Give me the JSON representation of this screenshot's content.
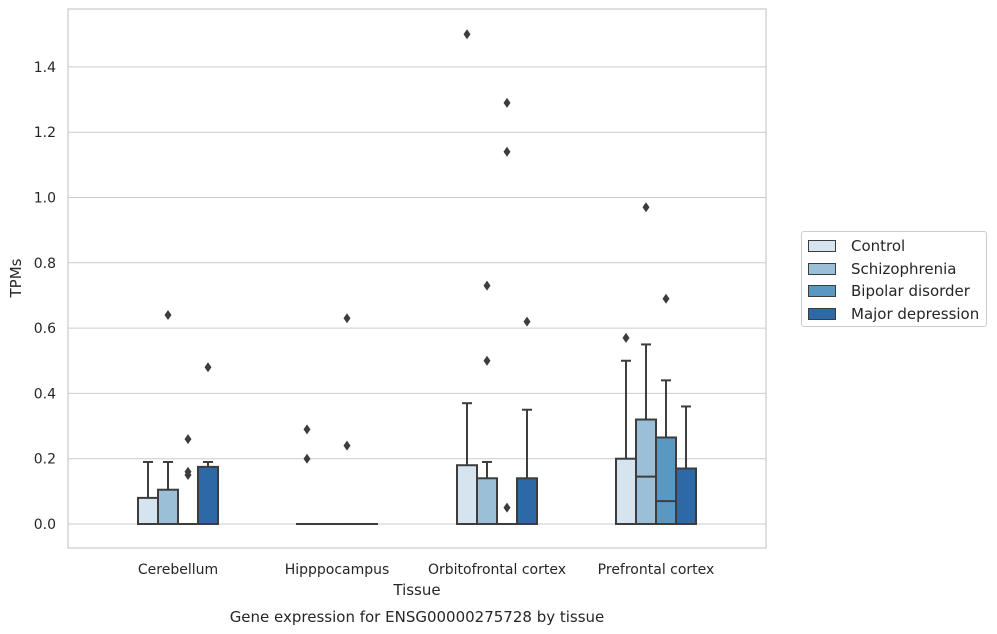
{
  "chart_data": {
    "type": "boxplot",
    "caption": "Gene expression for ENSG00000275728 by tissue",
    "xlabel": "Tissue",
    "ylabel": "TPMs",
    "ylim": [
      -0.07,
      1.58
    ],
    "yticks": [
      0.0,
      0.2,
      0.4,
      0.6,
      0.8,
      1.0,
      1.2,
      1.4
    ],
    "ytick_labels": [
      "0.0",
      "0.2",
      "0.4",
      "0.6",
      "0.8",
      "1.0",
      "1.2",
      "1.4"
    ],
    "grid": "horizontal",
    "legend_position": "right",
    "categories": [
      "Cerebellum",
      "Hipppocampus",
      "Orbitofrontal cortex",
      "Prefrontal cortex"
    ],
    "series": [
      {
        "name": "Control",
        "color": "#d6e4f0",
        "stats": [
          {
            "whislo": 0,
            "q1": 0,
            "med": 0,
            "q3": 0.08,
            "whishi": 0.19,
            "fliers": []
          },
          {
            "whislo": 0,
            "q1": 0,
            "med": 0,
            "q3": 0,
            "whishi": 0,
            "fliers": [
              0.29,
              0.2
            ]
          },
          {
            "whislo": 0,
            "q1": 0,
            "med": 0,
            "q3": 0.18,
            "whishi": 0.37,
            "fliers": [
              1.5
            ]
          },
          {
            "whislo": 0,
            "q1": 0,
            "med": 0,
            "q3": 0.2,
            "whishi": 0.5,
            "fliers": [
              0.57
            ]
          }
        ]
      },
      {
        "name": "Schizophrenia",
        "color": "#9bbfd6",
        "stats": [
          {
            "whislo": 0,
            "q1": 0,
            "med": 0,
            "q3": 0.105,
            "whishi": 0.19,
            "fliers": [
              0.64
            ]
          },
          {
            "whislo": 0,
            "q1": 0,
            "med": 0,
            "q3": 0,
            "whishi": 0,
            "fliers": []
          },
          {
            "whislo": 0,
            "q1": 0,
            "med": 0,
            "q3": 0.14,
            "whishi": 0.19,
            "fliers": [
              0.73,
              0.5
            ]
          },
          {
            "whislo": 0,
            "q1": 0,
            "med": 0.145,
            "q3": 0.32,
            "whishi": 0.55,
            "fliers": [
              0.97
            ]
          }
        ]
      },
      {
        "name": "Bipolar disorder",
        "color": "#5a98c4",
        "stats": [
          {
            "whislo": 0,
            "q1": 0,
            "med": 0,
            "q3": 0,
            "whishi": 0,
            "fliers": [
              0.26,
              0.16,
              0.15
            ]
          },
          {
            "whislo": 0,
            "q1": 0,
            "med": 0,
            "q3": 0,
            "whishi": 0,
            "fliers": [
              0.63,
              0.24
            ]
          },
          {
            "whislo": 0,
            "q1": 0,
            "med": 0,
            "q3": 0,
            "whishi": 0,
            "fliers": [
              1.29,
              1.14,
              0.05
            ]
          },
          {
            "whislo": 0,
            "q1": 0,
            "med": 0.07,
            "q3": 0.265,
            "whishi": 0.44,
            "fliers": [
              0.69
            ]
          }
        ]
      },
      {
        "name": "Major depression",
        "color": "#2c69a6",
        "stats": [
          {
            "whislo": 0,
            "q1": 0,
            "med": 0,
            "q3": 0.175,
            "whishi": 0.19,
            "fliers": [
              0.48
            ]
          },
          {
            "whislo": 0,
            "q1": 0,
            "med": 0,
            "q3": 0,
            "whishi": 0,
            "fliers": []
          },
          {
            "whislo": 0,
            "q1": 0,
            "med": 0,
            "q3": 0.14,
            "whishi": 0.35,
            "fliers": [
              0.62
            ]
          },
          {
            "whislo": 0,
            "q1": 0,
            "med": 0,
            "q3": 0.17,
            "whishi": 0.36,
            "fliers": []
          }
        ]
      }
    ]
  }
}
